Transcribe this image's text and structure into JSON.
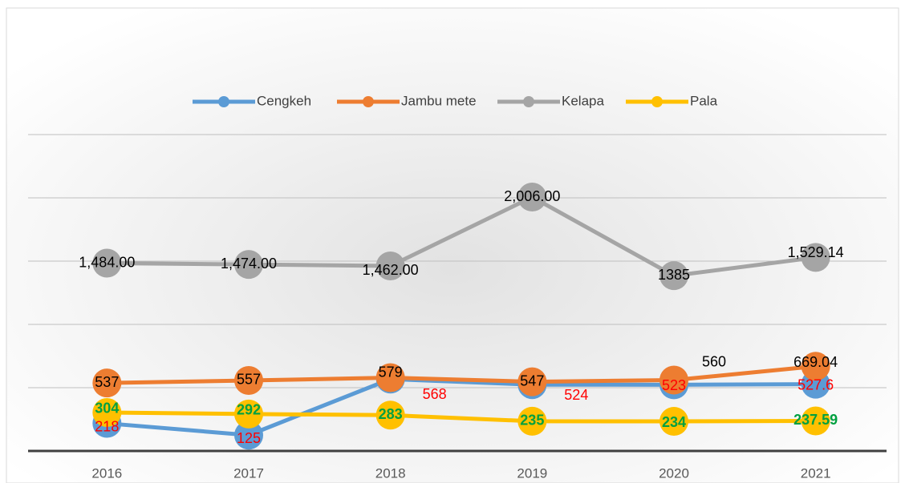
{
  "chart_data": {
    "type": "line",
    "categories": [
      "2016",
      "2017",
      "2018",
      "2019",
      "2020",
      "2021"
    ],
    "series": [
      {
        "name": "Cengkeh",
        "color": "#5b9bd5",
        "label_color": "#ff0000",
        "values": [
          218,
          125,
          568,
          524,
          523,
          527.6
        ]
      },
      {
        "name": "Jambu mete",
        "color": "#ed7d31",
        "label_color": "#000000",
        "values": [
          537,
          557,
          579,
          547,
          560,
          669.04
        ]
      },
      {
        "name": "Kelapa",
        "color": "#a5a5a5",
        "label_color": "#000000",
        "values": [
          1484,
          1474,
          1462,
          2006,
          1385,
          1529.14
        ],
        "value_labels": [
          "1,484.00",
          "1,474.00",
          "1,462.00",
          "2,006.00",
          "1385",
          "1,529.14"
        ]
      },
      {
        "name": "Pala",
        "color": "#ffc000",
        "label_color": "#00a040",
        "values": [
          304,
          292,
          283,
          235,
          234,
          237.59
        ]
      }
    ],
    "ylim": [
      0,
      3000
    ],
    "yticks": [
      0,
      500,
      1000,
      1500,
      2000,
      2500
    ],
    "grid": true,
    "legend": "top"
  }
}
